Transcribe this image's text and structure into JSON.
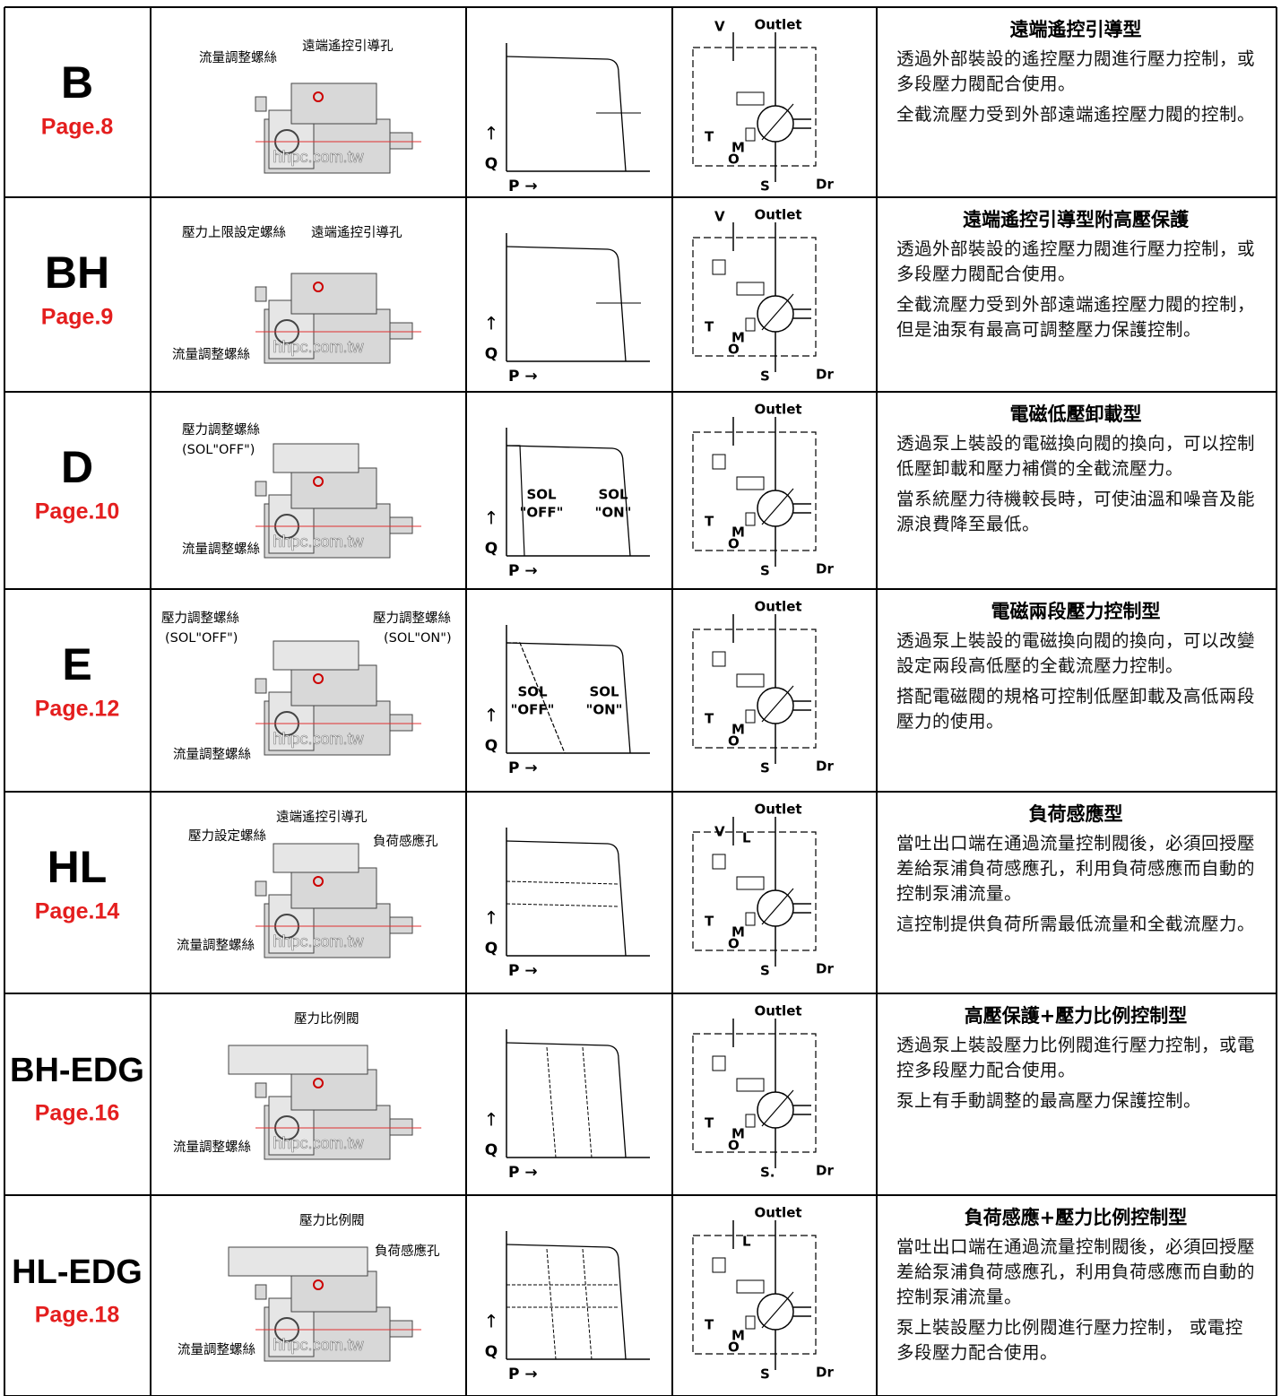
{
  "rows": [
    {
      "model": "B",
      "page": "Page.8",
      "pump_labels": [
        "流量調整螺絲",
        "遠端遙控引導孔"
      ],
      "watermark": "hhpc.com.tw",
      "graph_labels": {
        "p": "P →",
        "up": "↑",
        "q": "Q"
      },
      "circuit_labels": [
        "V",
        "Outlet",
        "T",
        "M",
        "O",
        "S",
        "Dr"
      ],
      "title": "遠端遙控引導型",
      "paragraphs": [
        "透過外部裝設的遙控壓力閥進行壓力控制，或多段壓力閥配合使用。",
        "全截流壓力受到外部遠端遙控壓力閥的控制。"
      ]
    },
    {
      "model": "BH",
      "page": "Page.9",
      "pump_labels": [
        "壓力上限設定螺絲",
        "遠端遙控引導孔",
        "流量調整螺絲"
      ],
      "watermark": "hhpc.com.tw",
      "graph_labels": {
        "p": "P →",
        "up": "↑",
        "q": "Q"
      },
      "circuit_labels": [
        "V",
        "Outlet",
        "T",
        "M",
        "O",
        "S",
        "Dr"
      ],
      "title": "遠端遙控引導型附高壓保護",
      "paragraphs": [
        "透過外部裝設的遙控壓力閥進行壓力控制，或多段壓力閥配合使用。",
        "全截流壓力受到外部遠端遙控壓力閥的控制，但是油泵有最高可調整壓力保護控制。"
      ]
    },
    {
      "model": "D",
      "page": "Page.10",
      "pump_labels": [
        "壓力調整螺絲",
        "(SOL\"OFF\")",
        "流量調整螺絲"
      ],
      "watermark": "hhpc.com.tw",
      "graph_labels": {
        "p": "P →",
        "up": "↑",
        "q": "Q",
        "sol": [
          "SOL",
          "\"OFF\"",
          "SOL",
          "\"ON\""
        ]
      },
      "circuit_labels": [
        "Outlet",
        "M",
        "O",
        "T",
        "S",
        "Dr"
      ],
      "title": "電磁低壓卸載型",
      "paragraphs": [
        "透過泵上裝設的電磁換向閥的換向，可以控制低壓卸載和壓力補償的全截流壓力。",
        "當系統壓力待機較長時，可使油溫和噪音及能源浪費降至最低。"
      ]
    },
    {
      "model": "E",
      "page": "Page.12",
      "pump_labels": [
        "壓力調整螺絲",
        "(SOL\"OFF\")",
        "壓力調整螺絲",
        "(SOL\"ON\")",
        "流量調整螺絲"
      ],
      "watermark": "hhpc.com.tw",
      "graph_labels": {
        "p": "P →",
        "up": "↑",
        "q": "Q",
        "sol": [
          "SOL",
          "\"OFF\"",
          "SOL",
          "\"ON\""
        ]
      },
      "circuit_labels": [
        "Outlet",
        "M",
        "O",
        "T",
        "S",
        "Dr"
      ],
      "title": "電磁兩段壓力控制型",
      "paragraphs": [
        "透過泵上裝設的電磁換向閥的換向，可以改變設定兩段高低壓的全截流壓力控制。",
        "搭配電磁閥的規格可控制低壓卸載及高低兩段壓力的使用。"
      ]
    },
    {
      "model": "HL",
      "page": "Page.14",
      "pump_labels": [
        "遠端遙控引導孔",
        "壓力設定螺絲",
        "負荷感應孔",
        "流量調整螺絲"
      ],
      "watermark": "hhpc.com.tw",
      "graph_labels": {
        "p": "P →",
        "up": "↑",
        "q": "Q"
      },
      "circuit_labels": [
        "Outlet",
        "V",
        "L",
        "T",
        "M",
        "O",
        "S",
        "Dr"
      ],
      "title": "負荷感應型",
      "paragraphs": [
        "當吐出口端在通過流量控制閥後，必須回授壓差給泵浦負荷感應孔，利用負荷感應而自動的控制泵浦流量。",
        "這控制提供負荷所需最低流量和全截流壓力。"
      ]
    },
    {
      "model": "BH-EDG",
      "page": "Page.16",
      "pump_labels": [
        "壓力比例閥",
        "流量調整螺絲"
      ],
      "watermark": "hhpc.com.tw",
      "graph_labels": {
        "p": "P →",
        "up": "↑",
        "q": "Q"
      },
      "circuit_labels": [
        "Outlet",
        "T",
        "M",
        "O",
        "S.",
        "Dr"
      ],
      "title": "高壓保護+壓力比例控制型",
      "paragraphs": [
        "透過泵上裝設壓力比例閥進行壓力控制，或電控多段壓力配合使用。",
        "泵上有手動調整的最高壓力保護控制。"
      ]
    },
    {
      "model": "HL-EDG",
      "page": "Page.18",
      "pump_labels": [
        "壓力比例閥",
        "負荷感應孔",
        "流量調整螺絲"
      ],
      "watermark": "hhpc.com.tw",
      "graph_labels": {
        "p": "P →",
        "up": "↑",
        "q": "Q"
      },
      "circuit_labels": [
        "Outlet",
        "L",
        "T",
        "M",
        "O",
        "S",
        "Dr"
      ],
      "title": "負荷感應+壓力比例控制型",
      "paragraphs": [
        "當吐出口端在通過流量控制閥後，必須回授壓差給泵浦負荷感應孔，利用負荷感應而自動的控制泵浦流量。",
        "泵上裝設壓力比例閥進行壓力控制， 或電控多段壓力配合使用。"
      ]
    }
  ]
}
